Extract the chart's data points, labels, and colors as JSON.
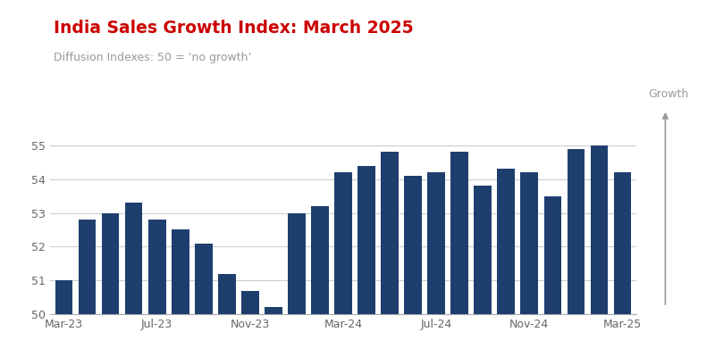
{
  "title": "India Sales Growth Index: March 2025",
  "subtitle": "Diffusion Indexes: 50 = ‘no growth’",
  "bar_color": "#1e3f6e",
  "background_color": "#ffffff",
  "title_color": "#cc0000",
  "subtitle_color": "#999999",
  "ylim": [
    50,
    55.5
  ],
  "yticks": [
    50,
    51,
    52,
    53,
    54,
    55
  ],
  "grid_color": "#cccccc",
  "values": [
    51.0,
    52.8,
    53.0,
    53.3,
    52.8,
    52.5,
    52.1,
    51.2,
    50.7,
    50.2,
    53.0,
    53.2,
    54.2,
    54.4,
    54.8,
    54.1,
    54.2,
    54.8,
    53.8,
    54.3,
    54.2,
    53.5,
    54.9,
    55.0,
    54.2
  ],
  "xtick_labels": [
    "Mar-23",
    "Jul-23",
    "Nov-23",
    "Mar-24",
    "Jul-24",
    "Nov-24",
    "Mar-25"
  ],
  "xtick_positions": [
    0,
    4,
    8,
    12,
    16,
    20,
    24
  ],
  "growth_label": "Growth",
  "growth_label_color": "#999999",
  "arrow_color": "#999999",
  "red_bar_color": "#cc0000"
}
